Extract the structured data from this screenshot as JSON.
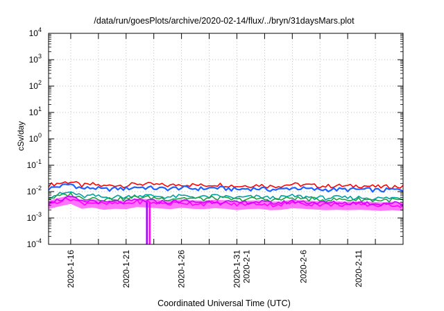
{
  "chart_data": {
    "type": "line",
    "title": "/data/run/goesPlots/archive/2020-02-14/flux/../bryn/31daysMars.plot",
    "xlabel": "Coordinated Universal Time (UTC)",
    "ylabel": "cSv/day",
    "y_scale": "log",
    "ylim": [
      0.0001,
      10000
    ],
    "xlim": [
      "2020-01-14",
      "2020-02-15"
    ],
    "grid": true,
    "legend": "none",
    "y_ticks": [
      {
        "base": "10",
        "exp": "-4",
        "value": 0.0001
      },
      {
        "base": "10",
        "exp": "-3",
        "value": 0.001
      },
      {
        "base": "10",
        "exp": "-2",
        "value": 0.01
      },
      {
        "base": "10",
        "exp": "-1",
        "value": 0.1
      },
      {
        "base": "10",
        "exp": "0",
        "value": 1
      },
      {
        "base": "10",
        "exp": "1",
        "value": 10
      },
      {
        "base": "10",
        "exp": "2",
        "value": 100
      },
      {
        "base": "10",
        "exp": "3",
        "value": 1000
      },
      {
        "base": "10",
        "exp": "4",
        "value": 10000
      }
    ],
    "x_ticks": [
      {
        "date": "2020-01-16",
        "label": "2020-1-16"
      },
      {
        "date": "2020-01-21",
        "label": "2020-1-21"
      },
      {
        "date": "2020-01-26",
        "label": "2020-1-26"
      },
      {
        "date": "2020-01-31",
        "label": "2020-1-31",
        "label2": "2020-2-1"
      },
      {
        "date": "2020-02-06",
        "label": "2020-2-6"
      },
      {
        "date": "2020-02-11",
        "label": "2020-2-11"
      }
    ],
    "dates": [
      "2020-01-14",
      "2020-01-15",
      "2020-01-16",
      "2020-01-17",
      "2020-01-18",
      "2020-01-19",
      "2020-01-20",
      "2020-01-21",
      "2020-01-22",
      "2020-01-23",
      "2020-01-24",
      "2020-01-25",
      "2020-01-26",
      "2020-01-27",
      "2020-01-28",
      "2020-01-29",
      "2020-01-30",
      "2020-01-31",
      "2020-02-01",
      "2020-02-02",
      "2020-02-03",
      "2020-02-04",
      "2020-02-05",
      "2020-02-06",
      "2020-02-07",
      "2020-02-08",
      "2020-02-09",
      "2020-02-10",
      "2020-02-11",
      "2020-02-12",
      "2020-02-13",
      "2020-02-14",
      "2020-02-15"
    ],
    "series": [
      {
        "color": "#ff0000",
        "values": [
          0.018,
          0.021,
          0.024,
          0.017,
          0.019,
          0.016,
          0.018,
          0.017,
          0.02,
          0.019,
          0.018,
          0.017,
          0.019,
          0.018,
          0.017,
          0.019,
          0.018,
          0.016,
          0.017,
          0.018,
          0.016,
          0.017,
          0.019,
          0.018,
          0.017,
          0.016,
          0.017,
          0.016,
          0.017,
          0.016,
          0.015,
          0.016,
          0.015
        ]
      },
      {
        "color": "#2060ff",
        "values": [
          0.013,
          0.016,
          0.019,
          0.013,
          0.014,
          0.012,
          0.013,
          0.013,
          0.015,
          0.014,
          0.013,
          0.013,
          0.014,
          0.013,
          0.013,
          0.014,
          0.013,
          0.012,
          0.013,
          0.013,
          0.012,
          0.012,
          0.014,
          0.013,
          0.012,
          0.012,
          0.012,
          0.012,
          0.012,
          0.012,
          0.011,
          0.012,
          0.011
        ]
      },
      {
        "color": "#00a0a0",
        "values": [
          0.0065,
          0.008,
          0.0095,
          0.0065,
          0.007,
          0.006,
          0.0065,
          0.0062,
          0.0074,
          0.007,
          0.0066,
          0.0062,
          0.0068,
          0.0065,
          0.0062,
          0.0068,
          0.0064,
          0.0058,
          0.0062,
          0.0064,
          0.0058,
          0.006,
          0.0068,
          0.0064,
          0.006,
          0.0058,
          0.006,
          0.0058,
          0.006,
          0.0058,
          0.0055,
          0.0058,
          0.0055
        ]
      },
      {
        "color": "#20a040",
        "values": [
          0.0055,
          0.0068,
          0.008,
          0.0055,
          0.006,
          0.0051,
          0.0055,
          0.0053,
          0.0063,
          0.006,
          0.0056,
          0.0053,
          0.0058,
          0.0055,
          0.0053,
          0.0058,
          0.0054,
          0.0049,
          0.0053,
          0.0054,
          0.0049,
          0.0051,
          0.0058,
          0.0054,
          0.0051,
          0.0049,
          0.0051,
          0.0049,
          0.0051,
          0.0049,
          0.0047,
          0.0049,
          0.0047
        ]
      },
      {
        "color": "#ff00ff",
        "values": [
          0.0035,
          0.0045,
          0.0055,
          0.0036,
          0.004,
          0.0033,
          0.0036,
          0.0035,
          0.0042,
          0.004,
          0.0037,
          0.0035,
          0.0039,
          0.0036,
          0.0035,
          0.0038,
          0.0036,
          0.0032,
          0.0035,
          0.0036,
          0.0032,
          0.0033,
          0.0038,
          0.0036,
          0.0034,
          0.0032,
          0.0033,
          0.0032,
          0.0033,
          0.0032,
          0.003,
          0.0032,
          0.003
        ]
      },
      {
        "color": "#a000ff",
        "values": [
          0.004,
          0.005,
          0.006,
          0.0041,
          0.0045,
          0.0038,
          0.0041,
          0.004,
          0.0047,
          0.0045,
          0.0042,
          0.004,
          0.0044,
          0.0041,
          0.004,
          0.0043,
          0.0041,
          0.0037,
          0.004,
          0.0041,
          0.0037,
          0.0038,
          0.0043,
          0.0041,
          0.0039,
          0.0037,
          0.0038,
          0.0037,
          0.0038,
          0.0037,
          0.0035,
          0.0037,
          0.0035
        ]
      }
    ],
    "dropout": {
      "date": "2020-01-23",
      "value": 0.0001,
      "color": "#a000ff"
    }
  }
}
